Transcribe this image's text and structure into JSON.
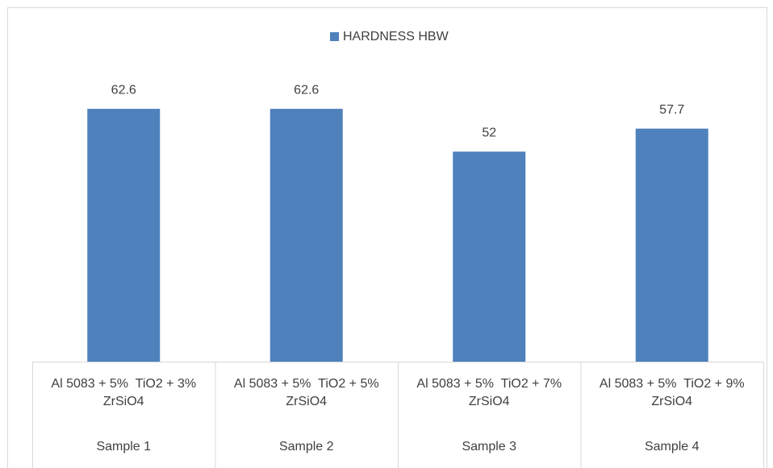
{
  "chart_data": {
    "type": "bar",
    "series": [
      {
        "name": "HARDNESS HBW",
        "color": "#4f81bd",
        "values": [
          62.6,
          62.6,
          52,
          57.7
        ]
      }
    ],
    "categories": [
      "Al 5083 + 5%  TiO2 + 3% ZrSiO4",
      "Al 5083 + 5%  TiO2 + 5% ZrSiO4",
      "Al 5083 + 5%  TiO2 + 7% ZrSiO4",
      "Al 5083 + 5%  TiO2 + 9% ZrSiO4"
    ],
    "groups": [
      "Sample 1",
      "Sample 2",
      "Sample 3",
      "Sample 4"
    ],
    "ylim": [
      0,
      70
    ],
    "legend": "top"
  }
}
